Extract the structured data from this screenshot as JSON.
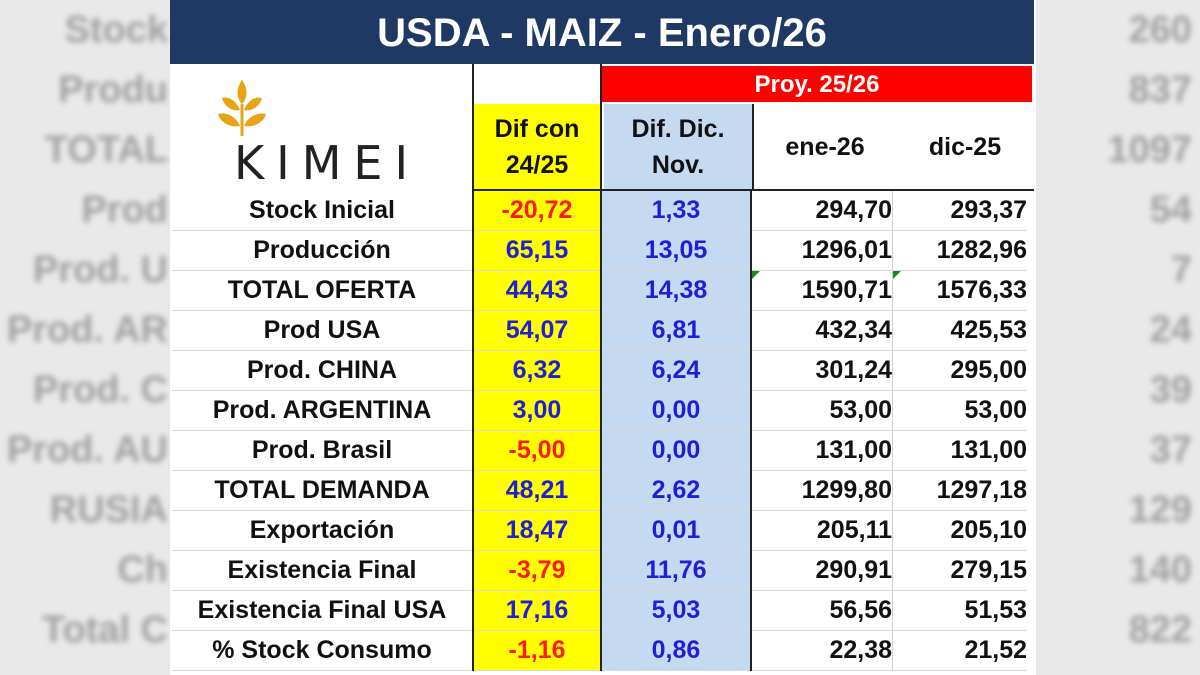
{
  "title": "USDA - MAIZ - Enero/26",
  "logo": {
    "text": "KIMEI"
  },
  "header": {
    "proy": "Proy. 25/26",
    "dif_line1": "Dif con",
    "dif_line2": "24/25",
    "dic_line1": "Dif. Dic.",
    "dic_line2": "Nov.",
    "ene": "ene-26",
    "dic25": "dic-25"
  },
  "rows": [
    {
      "label": "Stock Inicial",
      "dif": "-20,72",
      "dic": "1,33",
      "ene": "294,70",
      "dic25": "293,37"
    },
    {
      "label": "Producción",
      "dif": "65,15",
      "dic": "13,05",
      "ene": "1296,01",
      "dic25": "1282,96"
    },
    {
      "label": "TOTAL OFERTA",
      "dif": "44,43",
      "dic": "14,38",
      "ene": "1590,71",
      "dic25": "1576,33"
    },
    {
      "label": "Prod  USA",
      "dif": "54,07",
      "dic": "6,81",
      "ene": "432,34",
      "dic25": "425,53"
    },
    {
      "label": "Prod. CHINA",
      "dif": "6,32",
      "dic": "6,24",
      "ene": "301,24",
      "dic25": "295,00"
    },
    {
      "label": "Prod.  ARGENTINA",
      "dif": "3,00",
      "dic": "0,00",
      "ene": "53,00",
      "dic25": "53,00"
    },
    {
      "label": "Prod. Brasil",
      "dif": "-5,00",
      "dic": "0,00",
      "ene": "131,00",
      "dic25": "131,00"
    },
    {
      "label": "TOTAL DEMANDA",
      "dif": "48,21",
      "dic": "2,62",
      "ene": "1299,80",
      "dic25": "1297,18"
    },
    {
      "label": "Exportación",
      "dif": "18,47",
      "dic": "0,01",
      "ene": "205,11",
      "dic25": "205,10"
    },
    {
      "label": "Existencia Final",
      "dif": "-3,79",
      "dic": "11,76",
      "ene": "290,91",
      "dic25": "279,15"
    },
    {
      "label": "Existencia Final USA",
      "dif": "17,16",
      "dic": "5,03",
      "ene": "56,56",
      "dic25": "51,53"
    },
    {
      "label": "% Stock Consumo",
      "dif": "-1,16",
      "dic": "0,86",
      "ene": "22,38",
      "dic25": "21,52"
    }
  ],
  "colors": {
    "title_bg": "#1f3864",
    "proy_bg": "#ff0000",
    "dif_bg": "#ffff00",
    "dic_bg": "#c5d9f1",
    "negative": "#ff1a1a",
    "positive": "#1f1fd8"
  }
}
